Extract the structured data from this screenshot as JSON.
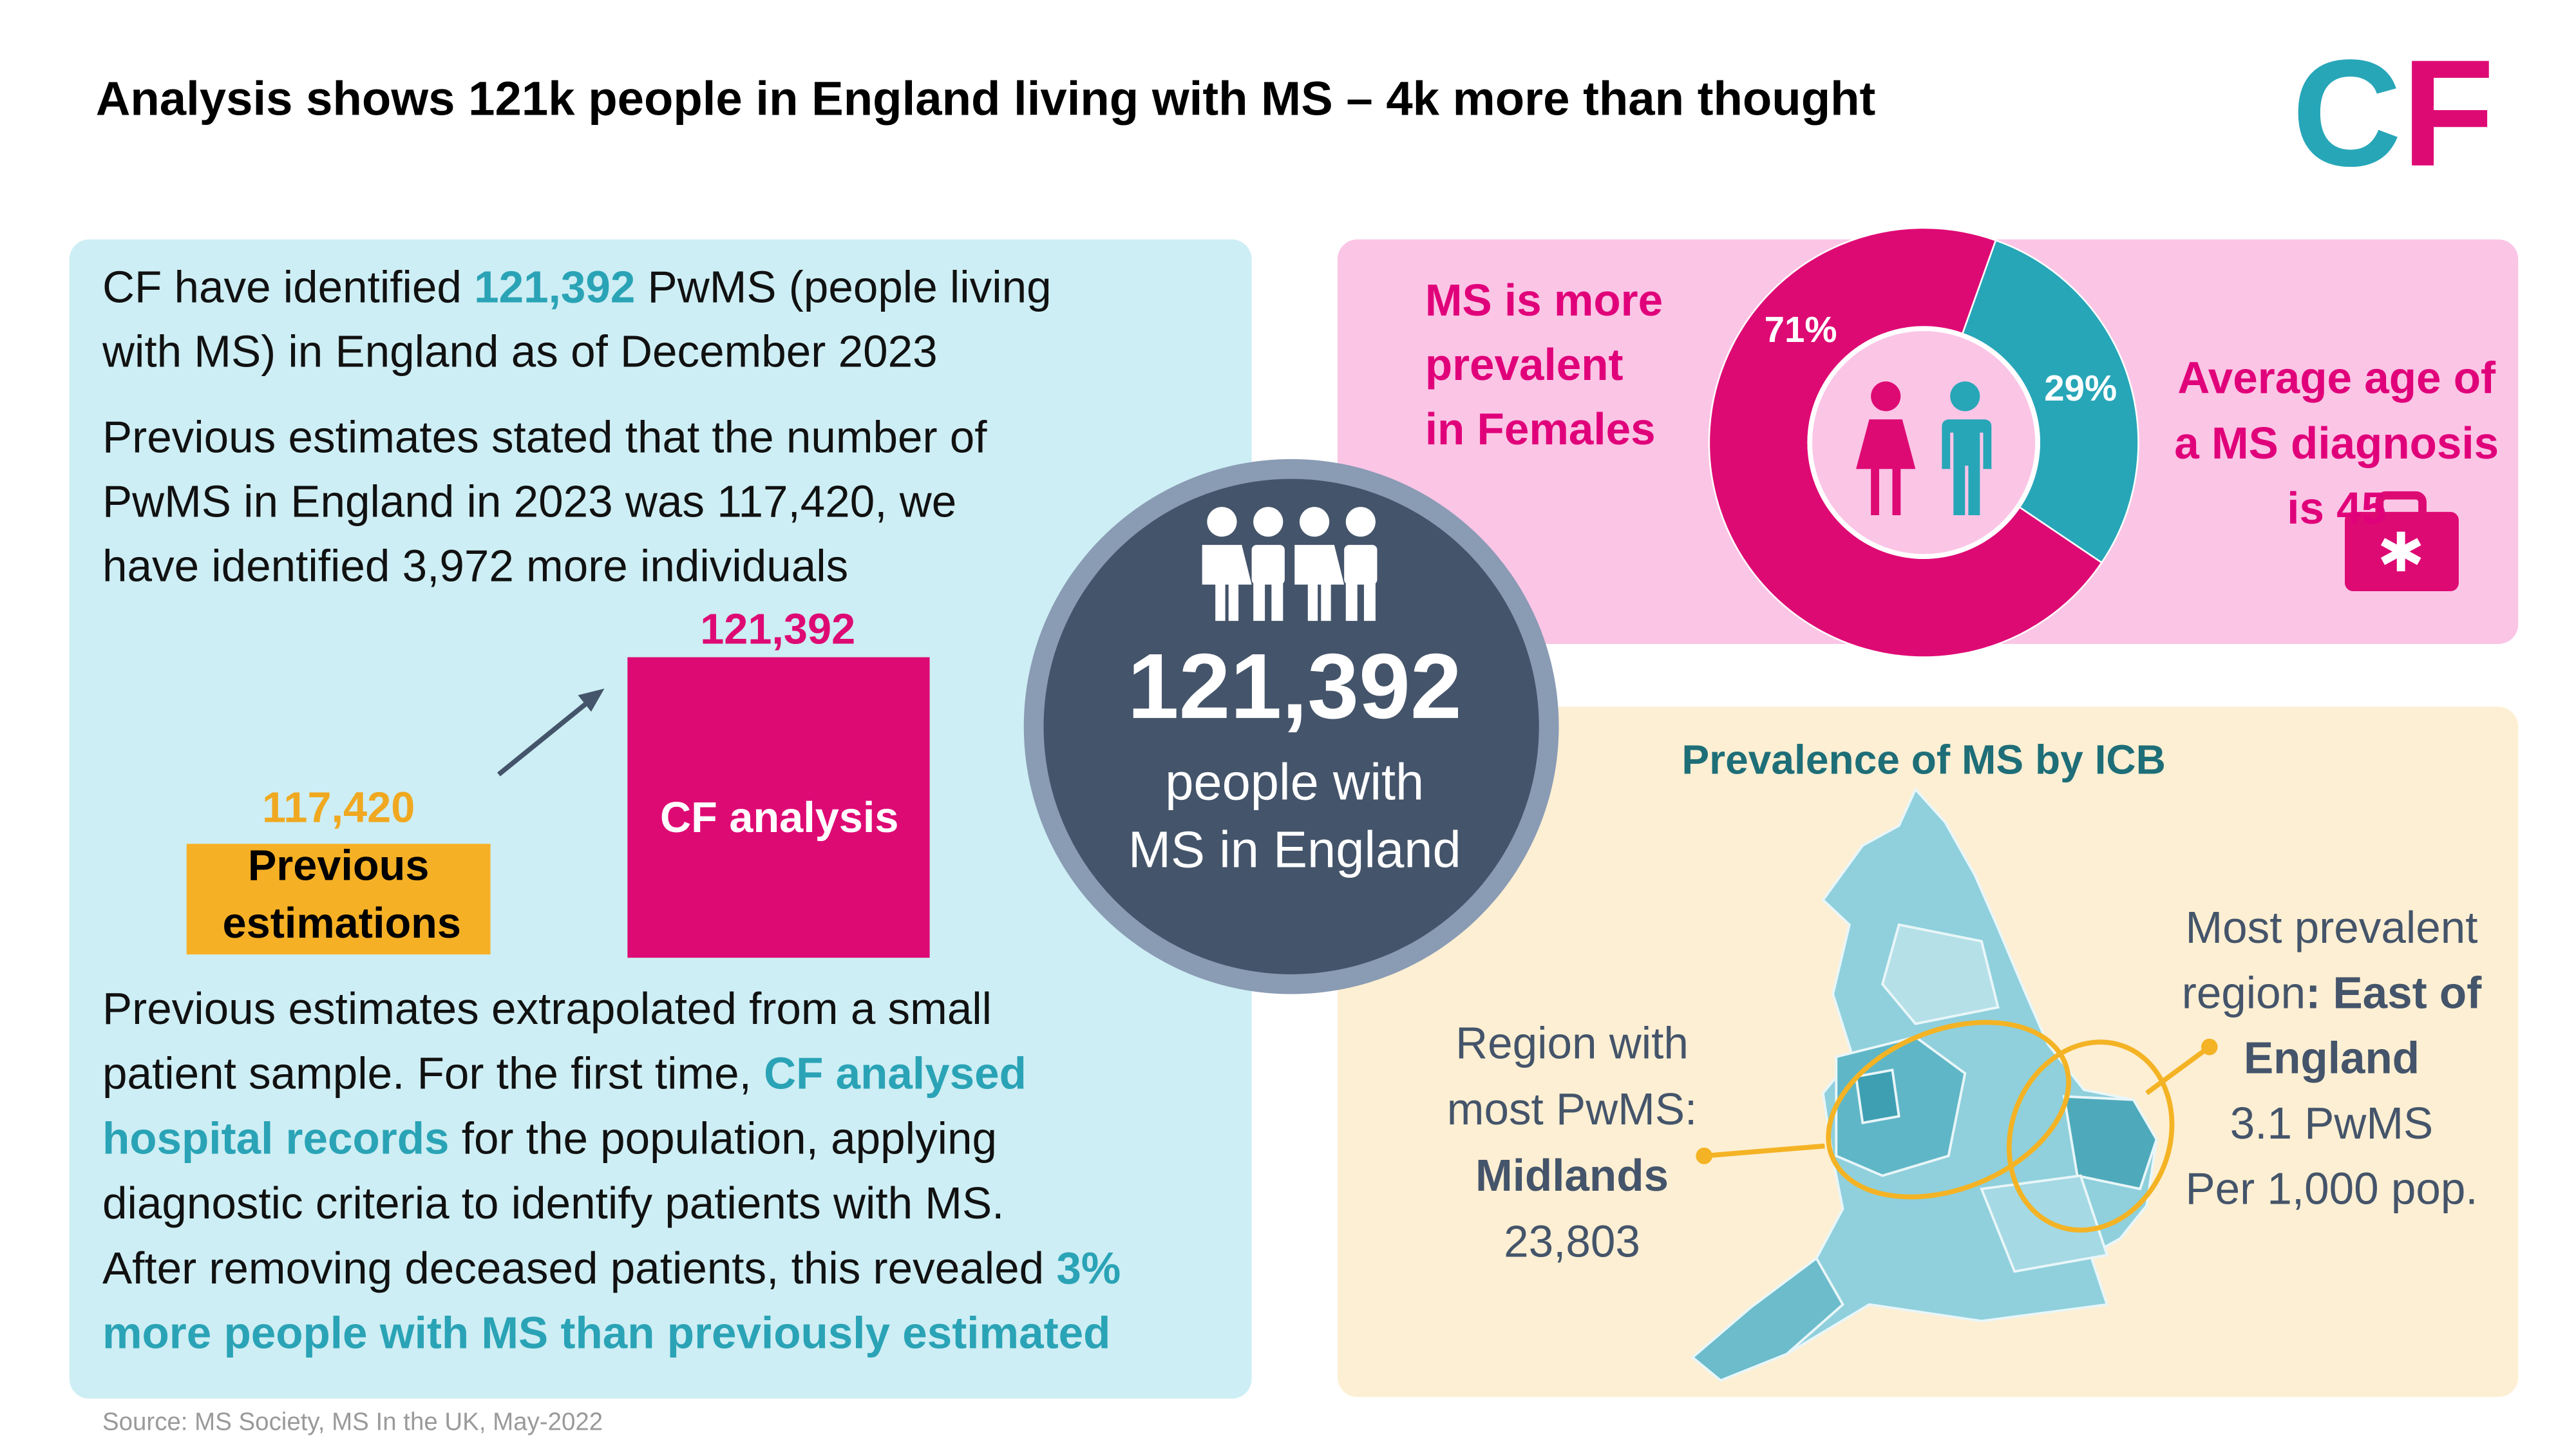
{
  "header": {
    "title": "Analysis shows 121k people in England living with MS – 4k more than thought",
    "logo": [
      "C",
      "F"
    ]
  },
  "summary_panel": {
    "intro": [
      [
        {
          "text": "CF have identified "
        },
        {
          "text": "121,392",
          "emphasis": true
        },
        {
          "text": " PwMS (people living"
        }
      ],
      [
        {
          "text": "with MS) in England as of December 2023"
        }
      ]
    ],
    "previous_estimate": [
      [
        {
          "text": "Previous estimates stated that the number of"
        }
      ],
      [
        {
          "text": "PwMS in England in 2023 was 117,420, we"
        }
      ],
      [
        {
          "text": "have identified 3,972 more individuals"
        }
      ]
    ],
    "comparison": {
      "previous": {
        "value": "117,420",
        "label": [
          "Previous",
          "estimations"
        ],
        "color": "#f6b025"
      },
      "cf": {
        "value": "121,392",
        "label": "CF analysis",
        "color": "#de0a74"
      }
    },
    "method": [
      [
        {
          "text": "Previous estimates extrapolated from a small"
        }
      ],
      [
        {
          "text": "patient sample. For the first time, "
        },
        {
          "text": "CF analysed",
          "emphasis": true
        }
      ],
      [
        {
          "text": "hospital records",
          "emphasis": true
        },
        {
          "text": " for the population, applying"
        }
      ],
      [
        {
          "text": "diagnostic criteria to identify patients with MS."
        }
      ],
      [
        {
          "text": "After removing deceased patients, this revealed "
        },
        {
          "text": "3%",
          "emphasis": true
        }
      ],
      [
        {
          "text": "more people with MS than previously estimated",
          "emphasis": true
        }
      ]
    ],
    "source": "Source: MS Society, MS In the UK, May-2022"
  },
  "headline": {
    "value": "121,392",
    "caption": [
      "people with",
      "MS in England"
    ]
  },
  "gender": {
    "headline": [
      "MS is more",
      "prevalent",
      "in Females"
    ],
    "chart": {
      "type": "donut",
      "values": [
        71,
        29
      ],
      "value_labels": [
        "71%",
        "29%"
      ],
      "colors": [
        "#de0a74",
        "#27a6b8"
      ]
    }
  },
  "age": [
    "Average age of",
    "a MS diagnosis",
    "is 45"
  ],
  "map": {
    "title": "Prevalence of MS by ICB",
    "midlands": [
      [
        {
          "text": "Region with"
        }
      ],
      [
        {
          "text": "most PwMS:"
        }
      ],
      [
        {
          "text": "Midlands",
          "emphasis": true
        }
      ],
      [
        {
          "text": "23,803"
        }
      ]
    ],
    "east": [
      [
        {
          "text": "Most prevalent"
        }
      ],
      [
        {
          "text": "region"
        },
        {
          "text": ": East of",
          "emphasis": true
        }
      ],
      [
        {
          "text": "England",
          "emphasis": true
        }
      ],
      [
        {
          "text": "3.1 PwMS"
        }
      ],
      [
        {
          "text": "Per 1,000 pop."
        }
      ]
    ]
  }
}
